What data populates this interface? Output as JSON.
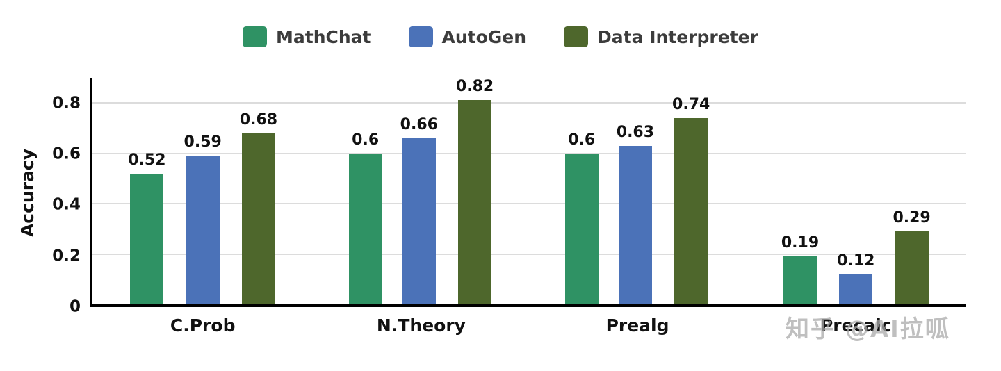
{
  "watermark": "知乎 @AI拉呱",
  "chart_data": {
    "type": "bar",
    "title": "",
    "xlabel": "",
    "ylabel": "Accuracy",
    "categories": [
      "C.Prob",
      "N.Theory",
      "Prealg",
      "Precalc"
    ],
    "series": [
      {
        "name": "MathChat",
        "color": "#2f9264",
        "values": [
          0.52,
          0.6,
          0.6,
          0.19
        ]
      },
      {
        "name": "AutoGen",
        "color": "#4b72b8",
        "values": [
          0.59,
          0.66,
          0.63,
          0.12
        ]
      },
      {
        "name": "Data Interpreter",
        "color": "#4e672c",
        "values": [
          0.68,
          0.82,
          0.74,
          0.29
        ]
      }
    ],
    "ylim": [
      0,
      0.9
    ],
    "yticks": [
      0,
      0.2,
      0.4,
      0.6,
      0.8
    ],
    "grid": true,
    "legend_position": "top"
  }
}
